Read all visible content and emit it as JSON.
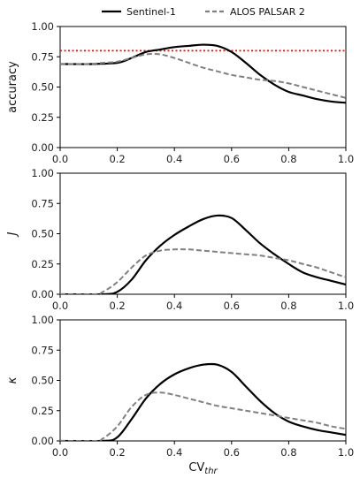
{
  "legend": {
    "entries": [
      {
        "name": "Sentinel-1",
        "color": "#000000",
        "style": "solid"
      },
      {
        "name": "ALOS PALSAR 2",
        "color": "#808080",
        "style": "dashed"
      }
    ]
  },
  "chart_data": [
    {
      "type": "line",
      "ylabel": "accuracy",
      "xlim": [
        0.0,
        1.0
      ],
      "ylim": [
        0.0,
        1.0
      ],
      "xticks": [
        "0.0",
        "0.2",
        "0.4",
        "0.6",
        "0.8",
        "1.0"
      ],
      "yticks": [
        "0.00",
        "0.25",
        "0.50",
        "0.75",
        "1.00"
      ],
      "reference_line": {
        "y": 0.8,
        "color": "#ff0000",
        "style": "dotted"
      },
      "series": [
        {
          "name": "Sentinel-1",
          "color": "#000000",
          "style": "solid",
          "x": [
            0.0,
            0.1,
            0.2,
            0.25,
            0.3,
            0.35,
            0.4,
            0.45,
            0.5,
            0.55,
            0.6,
            0.65,
            0.7,
            0.75,
            0.8,
            0.85,
            0.9,
            0.95,
            1.0
          ],
          "y": [
            0.69,
            0.69,
            0.7,
            0.74,
            0.79,
            0.81,
            0.83,
            0.84,
            0.85,
            0.84,
            0.79,
            0.7,
            0.6,
            0.52,
            0.46,
            0.43,
            0.4,
            0.38,
            0.37
          ]
        },
        {
          "name": "ALOS PALSAR 2",
          "color": "#808080",
          "style": "dashed",
          "x": [
            0.0,
            0.1,
            0.15,
            0.2,
            0.25,
            0.3,
            0.35,
            0.4,
            0.45,
            0.5,
            0.55,
            0.6,
            0.65,
            0.7,
            0.75,
            0.8,
            0.85,
            0.9,
            0.95,
            1.0
          ],
          "y": [
            0.69,
            0.69,
            0.7,
            0.71,
            0.74,
            0.77,
            0.77,
            0.74,
            0.7,
            0.66,
            0.63,
            0.6,
            0.58,
            0.56,
            0.55,
            0.53,
            0.5,
            0.47,
            0.44,
            0.41
          ]
        }
      ]
    },
    {
      "type": "line",
      "ylabel": "J",
      "xlim": [
        0.0,
        1.0
      ],
      "ylim": [
        0.0,
        1.0
      ],
      "xticks": [
        "0.0",
        "0.2",
        "0.4",
        "0.6",
        "0.8",
        "1.0"
      ],
      "yticks": [
        "0.00",
        "0.25",
        "0.50",
        "0.75",
        "1.00"
      ],
      "series": [
        {
          "name": "Sentinel-1",
          "color": "#000000",
          "style": "solid",
          "x": [
            0.0,
            0.15,
            0.2,
            0.25,
            0.3,
            0.35,
            0.4,
            0.45,
            0.5,
            0.55,
            0.6,
            0.65,
            0.7,
            0.75,
            0.8,
            0.85,
            0.9,
            0.95,
            1.0
          ],
          "y": [
            0.0,
            0.0,
            0.02,
            0.12,
            0.28,
            0.4,
            0.49,
            0.56,
            0.62,
            0.65,
            0.63,
            0.53,
            0.42,
            0.33,
            0.25,
            0.18,
            0.14,
            0.11,
            0.08
          ]
        },
        {
          "name": "ALOS PALSAR 2",
          "color": "#808080",
          "style": "dashed",
          "x": [
            0.0,
            0.12,
            0.15,
            0.2,
            0.25,
            0.3,
            0.35,
            0.4,
            0.45,
            0.5,
            0.55,
            0.6,
            0.65,
            0.7,
            0.75,
            0.8,
            0.85,
            0.9,
            0.95,
            1.0
          ],
          "y": [
            0.0,
            0.0,
            0.02,
            0.1,
            0.22,
            0.32,
            0.36,
            0.37,
            0.37,
            0.36,
            0.35,
            0.34,
            0.33,
            0.32,
            0.3,
            0.28,
            0.25,
            0.22,
            0.18,
            0.14
          ]
        }
      ]
    },
    {
      "type": "line",
      "ylabel": "κ",
      "xlabel": "CV",
      "xlabel_sub": "thr",
      "xlim": [
        0.0,
        1.0
      ],
      "ylim": [
        0.0,
        1.0
      ],
      "xticks": [
        "0.0",
        "0.2",
        "0.4",
        "0.6",
        "0.8",
        "1.0"
      ],
      "yticks": [
        "0.00",
        "0.25",
        "0.50",
        "0.75",
        "1.00"
      ],
      "series": [
        {
          "name": "Sentinel-1",
          "color": "#000000",
          "style": "solid",
          "x": [
            0.0,
            0.15,
            0.2,
            0.25,
            0.3,
            0.35,
            0.4,
            0.45,
            0.5,
            0.55,
            0.6,
            0.65,
            0.7,
            0.75,
            0.8,
            0.85,
            0.9,
            0.95,
            1.0
          ],
          "y": [
            0.0,
            0.0,
            0.03,
            0.18,
            0.35,
            0.47,
            0.55,
            0.6,
            0.63,
            0.63,
            0.57,
            0.45,
            0.33,
            0.23,
            0.16,
            0.12,
            0.09,
            0.07,
            0.05
          ]
        },
        {
          "name": "ALOS PALSAR 2",
          "color": "#808080",
          "style": "dashed",
          "x": [
            0.0,
            0.12,
            0.15,
            0.2,
            0.25,
            0.3,
            0.35,
            0.4,
            0.45,
            0.5,
            0.55,
            0.6,
            0.65,
            0.7,
            0.75,
            0.8,
            0.85,
            0.9,
            0.95,
            1.0
          ],
          "y": [
            0.0,
            0.0,
            0.02,
            0.12,
            0.28,
            0.38,
            0.4,
            0.38,
            0.35,
            0.32,
            0.29,
            0.27,
            0.25,
            0.23,
            0.21,
            0.19,
            0.17,
            0.15,
            0.12,
            0.1
          ]
        }
      ]
    }
  ]
}
